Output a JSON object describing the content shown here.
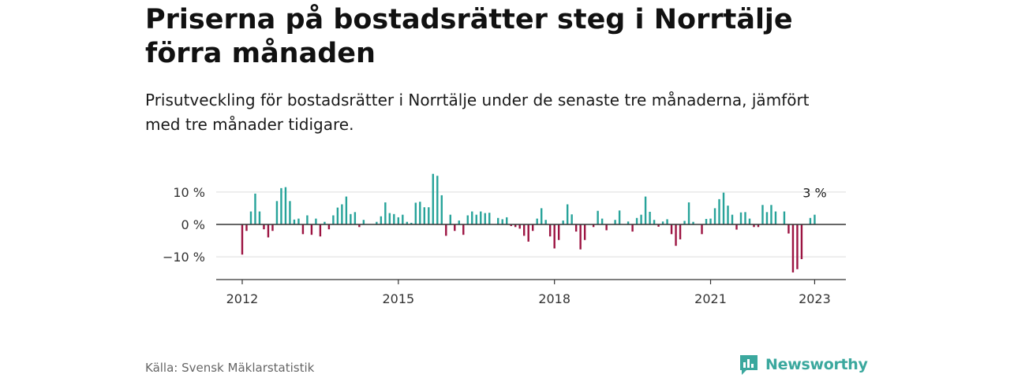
{
  "header": {
    "title": "Priserna på bostadsrätter steg i Norrtälje förra månaden",
    "subtitle": "Prisutveckling för bostadsrätter i Norrtälje under de senaste tre månaderna, jämfört med tre månader tidigare."
  },
  "footer": {
    "source": "Källa: Svensk Mäklarstatistik",
    "brand": "Newsworthy"
  },
  "colors": {
    "positive": "#27a39a",
    "negative": "#9c1442",
    "brand": "#3ba89e"
  },
  "chart_data": {
    "type": "bar",
    "y_unit": "%",
    "ylim": [
      -17,
      17
    ],
    "y_ticks": [
      -10,
      0,
      10
    ],
    "y_tick_labels": [
      "−10 %",
      "0 %",
      "10 %"
    ],
    "x_ticks": [
      2012,
      2015,
      2018,
      2021,
      2023
    ],
    "x_tick_labels": [
      "2012",
      "2015",
      "2018",
      "2021",
      "2023"
    ],
    "grid": true,
    "annotation": {
      "date": "2023-01",
      "text": "3 %"
    },
    "x": [
      "2012-01",
      "2012-02",
      "2012-03",
      "2012-04",
      "2012-05",
      "2012-06",
      "2012-07",
      "2012-08",
      "2012-09",
      "2012-10",
      "2012-11",
      "2012-12",
      "2013-01",
      "2013-02",
      "2013-03",
      "2013-04",
      "2013-05",
      "2013-06",
      "2013-07",
      "2013-08",
      "2013-09",
      "2013-10",
      "2013-11",
      "2013-12",
      "2014-01",
      "2014-02",
      "2014-03",
      "2014-04",
      "2014-05",
      "2014-06",
      "2014-07",
      "2014-08",
      "2014-09",
      "2014-10",
      "2014-11",
      "2014-12",
      "2015-01",
      "2015-02",
      "2015-03",
      "2015-04",
      "2015-05",
      "2015-06",
      "2015-07",
      "2015-08",
      "2015-09",
      "2015-10",
      "2015-11",
      "2015-12",
      "2016-01",
      "2016-02",
      "2016-03",
      "2016-04",
      "2016-05",
      "2016-06",
      "2016-07",
      "2016-08",
      "2016-09",
      "2016-10",
      "2016-11",
      "2016-12",
      "2017-01",
      "2017-02",
      "2017-03",
      "2017-04",
      "2017-05",
      "2017-06",
      "2017-07",
      "2017-08",
      "2017-09",
      "2017-10",
      "2017-11",
      "2017-12",
      "2018-01",
      "2018-02",
      "2018-03",
      "2018-04",
      "2018-05",
      "2018-06",
      "2018-07",
      "2018-08",
      "2018-09",
      "2018-10",
      "2018-11",
      "2018-12",
      "2019-01",
      "2019-02",
      "2019-03",
      "2019-04",
      "2019-05",
      "2019-06",
      "2019-07",
      "2019-08",
      "2019-09",
      "2019-10",
      "2019-11",
      "2019-12",
      "2020-01",
      "2020-02",
      "2020-03",
      "2020-04",
      "2020-05",
      "2020-06",
      "2020-07",
      "2020-08",
      "2020-09",
      "2020-10",
      "2020-11",
      "2020-12",
      "2021-01",
      "2021-02",
      "2021-03",
      "2021-04",
      "2021-05",
      "2021-06",
      "2021-07",
      "2021-08",
      "2021-09",
      "2021-10",
      "2021-11",
      "2021-12",
      "2022-01",
      "2022-02",
      "2022-03",
      "2022-04",
      "2022-05",
      "2022-06",
      "2022-07",
      "2022-08",
      "2022-09",
      "2022-10",
      "2022-11",
      "2022-12",
      "2023-01"
    ],
    "values": [
      -9.3,
      -2,
      4,
      9.5,
      4,
      -1.5,
      -4,
      -2,
      7.2,
      11.2,
      11.5,
      7.2,
      1.5,
      1.8,
      -3,
      2.8,
      -3.2,
      1.8,
      -3.7,
      0.8,
      -1.5,
      2.8,
      5.2,
      6.2,
      8.6,
      3.2,
      3.8,
      -0.8,
      1.4,
      0,
      0,
      0.8,
      2.5,
      6.8,
      3.5,
      3.2,
      2.2,
      3,
      0.8,
      0.5,
      6.7,
      7,
      5.3,
      5.3,
      15.6,
      15,
      9,
      -3.5,
      3,
      -2,
      1.2,
      -3.2,
      2.8,
      4,
      3,
      4,
      3.5,
      3.6,
      0,
      2,
      1.6,
      2.2,
      -0.5,
      -0.8,
      -1.3,
      -3.5,
      -5.3,
      -2,
      1.8,
      5,
      1.4,
      -3.7,
      -7.4,
      -4.8,
      1.2,
      6.2,
      3.1,
      -2.2,
      -7.7,
      -4.8,
      0,
      -0.8,
      4.2,
      1.8,
      -1.8,
      0,
      1.4,
      4.3,
      0,
      0.9,
      -2.2,
      2,
      3,
      8.6,
      3.9,
      1.4,
      -0.7,
      0.9,
      1.6,
      -3,
      -6.6,
      -4.6,
      1.1,
      6.8,
      0.8,
      0,
      -3,
      1.7,
      1.8,
      5,
      7.8,
      9.8,
      5.8,
      3,
      -1.6,
      3.7,
      3.8,
      1.8,
      -0.8,
      -0.8,
      6,
      3.8,
      6,
      4,
      0,
      4,
      -2.8,
      -14.8,
      -13.8,
      -10.7,
      0,
      2,
      3
    ]
  }
}
